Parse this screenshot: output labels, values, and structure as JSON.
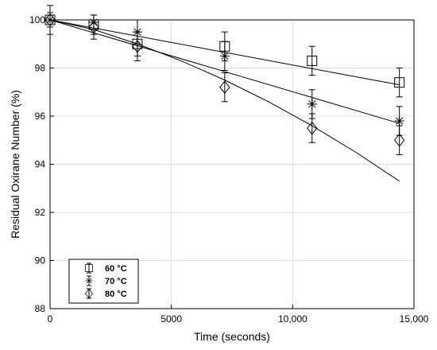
{
  "chart_data": {
    "type": "scatter",
    "xlabel": "Time (seconds)",
    "ylabel": "Residual Oxirane Number (%)",
    "xlim": [
      0,
      15000
    ],
    "ylim": [
      88,
      100
    ],
    "x_ticks": [
      {
        "value": 0,
        "label": "0"
      },
      {
        "value": 5000,
        "label": "5000"
      },
      {
        "value": 10000,
        "label": "10,000"
      },
      {
        "value": 15000,
        "label": "15,000"
      }
    ],
    "y_ticks": [
      {
        "value": 88,
        "label": "88"
      },
      {
        "value": 90,
        "label": "90"
      },
      {
        "value": 92,
        "label": "92"
      },
      {
        "value": 94,
        "label": "94"
      },
      {
        "value": 96,
        "label": "96"
      },
      {
        "value": 98,
        "label": "98"
      },
      {
        "value": 100,
        "label": "100"
      }
    ],
    "grid": true,
    "legend_position": "bottom-left",
    "series": [
      {
        "name": "60 °C",
        "marker": "square",
        "points": [
          {
            "x": 0,
            "y": 100.0,
            "err": 0.6
          },
          {
            "x": 1800,
            "y": 99.8,
            "err": 0.4
          },
          {
            "x": 3600,
            "y": 99.0,
            "err": 0.5
          },
          {
            "x": 7200,
            "y": 98.9,
            "err": 0.6
          },
          {
            "x": 10800,
            "y": 98.3,
            "err": 0.6
          },
          {
            "x": 14400,
            "y": 97.4,
            "err": 0.6
          }
        ],
        "fit": [
          [
            0,
            100.0
          ],
          [
            14400,
            97.3
          ]
        ]
      },
      {
        "name": "70 °C",
        "marker": "asterisk",
        "points": [
          {
            "x": 0,
            "y": 100.0,
            "err": 0.3
          },
          {
            "x": 1800,
            "y": 99.9,
            "err": 0.3
          },
          {
            "x": 3600,
            "y": 99.5,
            "err": 0.5
          },
          {
            "x": 7200,
            "y": 98.5,
            "err": 0.6
          },
          {
            "x": 10800,
            "y": 96.5,
            "err": 0.6
          },
          {
            "x": 14400,
            "y": 95.8,
            "err": 0.6
          }
        ],
        "fit": [
          [
            0,
            100.0
          ],
          [
            14400,
            95.7
          ]
        ]
      },
      {
        "name": "80 °C",
        "marker": "diamond",
        "points": [
          {
            "x": 0,
            "y": 100.0,
            "err": 0.2
          },
          {
            "x": 1800,
            "y": 99.7,
            "err": 0.5
          },
          {
            "x": 3600,
            "y": 98.9,
            "err": 0.6
          },
          {
            "x": 7200,
            "y": 97.2,
            "err": 0.6
          },
          {
            "x": 10800,
            "y": 95.5,
            "err": 0.6
          },
          {
            "x": 14400,
            "y": 95.0,
            "err": 0.6
          }
        ],
        "fit": [
          [
            0,
            100.0
          ],
          [
            1800,
            99.6
          ],
          [
            3600,
            99.0
          ],
          [
            5400,
            98.3
          ],
          [
            7200,
            97.5
          ],
          [
            9000,
            96.6
          ],
          [
            10800,
            95.6
          ],
          [
            12600,
            94.5
          ],
          [
            14400,
            93.3
          ]
        ]
      }
    ]
  }
}
